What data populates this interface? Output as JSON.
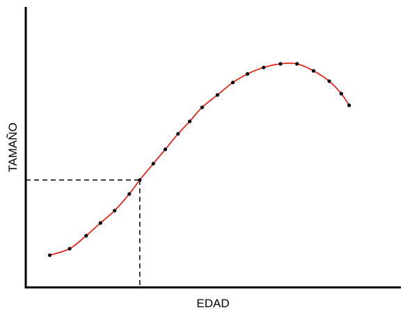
{
  "chart_data": {
    "type": "scatter",
    "xlabel": "EDAD",
    "ylabel": "TAMAÑO",
    "xlim": [
      0,
      100
    ],
    "ylim": [
      0,
      100
    ],
    "grid": false,
    "x_ticks": [],
    "y_ticks": [],
    "series": [
      {
        "x": [
          6.4,
          11.7,
          16.1,
          19.9,
          23.7,
          27.6,
          30.4,
          34.0,
          37.2,
          40.6,
          43.7,
          47.0,
          51.1,
          55.2,
          59.1,
          63.4,
          67.9,
          72.3,
          76.7,
          80.9,
          84.1,
          86.2
        ],
        "y": [
          12.3,
          14.8,
          19.8,
          24.7,
          29.5,
          35.9,
          41.3,
          47.6,
          53.1,
          59.1,
          63.9,
          69.3,
          74.1,
          78.9,
          82.2,
          84.7,
          86.1,
          86.1,
          83.4,
          79.4,
          74.6,
          70.1
        ]
      }
    ],
    "curve_color": "#e8231c",
    "point_color": "#000000",
    "reference_point": {
      "x": 30.4,
      "y": 41.3
    }
  }
}
